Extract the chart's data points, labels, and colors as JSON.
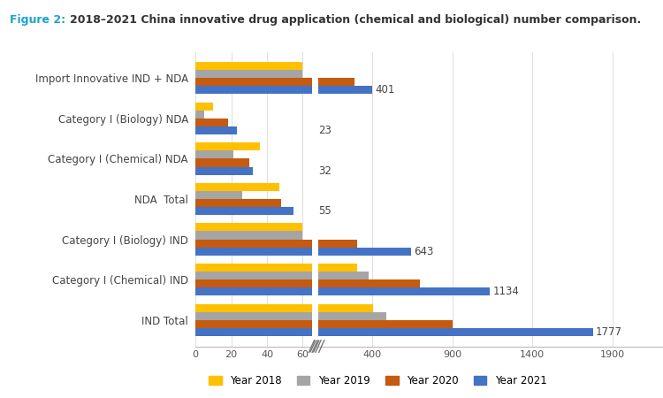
{
  "categories": [
    "IND Total",
    "Category I (Chemical) IND",
    "Category I (Biology) IND",
    "NDA  Total",
    "Category I (Chemical) NDA",
    "Category I (Biology) NDA",
    "Import Innovative IND + NDA"
  ],
  "year_2018": [
    408,
    310,
    60,
    47,
    36,
    10,
    60
  ],
  "year_2019": [
    490,
    380,
    60,
    26,
    21,
    5,
    60
  ],
  "year_2020": [
    900,
    700,
    310,
    48,
    30,
    18,
    290
  ],
  "year_2021": [
    1777,
    1134,
    643,
    55,
    32,
    23,
    401
  ],
  "colors": {
    "2018": "#FFC000",
    "2019": "#A5A5A5",
    "2020": "#C55A11",
    "2021": "#4472C4"
  },
  "title_figure": "Figure 2:",
  "title_main": "2018–2021 China innovative drug application (chemical and biological) number comparison.",
  "left_xlim": [
    0,
    65
  ],
  "right_xlim": [
    65,
    2400
  ],
  "right_xticks": [
    400,
    900,
    1400,
    1900,
    2400
  ],
  "left_xticks": [
    0,
    20,
    40,
    60
  ],
  "annotation_values": [
    1777,
    1134,
    643,
    55,
    32,
    23,
    401
  ],
  "legend_labels": [
    "Year 2018",
    "Year 2019",
    "Year 2020",
    "Year 2021"
  ],
  "background_color": "#FFFFFF",
  "bar_height": 0.2
}
